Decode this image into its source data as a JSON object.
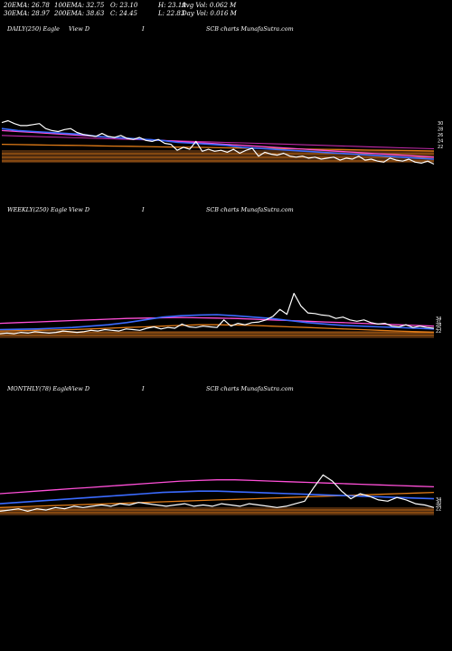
{
  "stats": {
    "row1": [
      "20EMA: 26.78",
      "100EMA: 32.75",
      "O: 23.10",
      "H: 23.19",
      "Avg Vol: 0.062  M"
    ],
    "row2": [
      "30EMA: 28.97",
      "200EMA: 38.63",
      "C: 24.45",
      "L: 22.83",
      "Day Vol: 0.016  M"
    ]
  },
  "panels": [
    {
      "title_a": "DAILY(250) Eagle",
      "title_b": "View  D",
      "title_c": "I",
      "title_d": "SCB charts MunafaSutra.com"
    },
    {
      "title_a": "WEEKLY(250) Eagle",
      "title_b": "View  D",
      "title_c": "I",
      "title_d": "SCB charts MunafaSutra.com"
    },
    {
      "title_a": "MONTHLY(78) Eagle",
      "title_b": "View  D",
      "title_c": "I",
      "title_d": "SCB charts MunafaSutra.com"
    }
  ],
  "colors": {
    "price": "#ffffff",
    "ema_blue": "#3b6bff",
    "ema_pink": "#ff4fd8",
    "ema_magenta": "#c02aa8",
    "ema_orange": "#e07b17",
    "band_brown": "#8a4c1a"
  },
  "chart_data": [
    {
      "type": "line",
      "title": "DAILY(250) Eagle",
      "series": [
        {
          "role": "price",
          "values": [
            58,
            60,
            57,
            55,
            55,
            56,
            57,
            52,
            50,
            49,
            51,
            52,
            48,
            46,
            45,
            44,
            47,
            44,
            43,
            45,
            42,
            41,
            43,
            40,
            39,
            41,
            37,
            36,
            30,
            33,
            31,
            39,
            29,
            31,
            29,
            30,
            28,
            31,
            27,
            30,
            32,
            24,
            28,
            26,
            25,
            27,
            24,
            23,
            24,
            22,
            23,
            21,
            22,
            23,
            20,
            22,
            21,
            24,
            20,
            21,
            19,
            18,
            22,
            20,
            19,
            21,
            18,
            17,
            19,
            16
          ]
        },
        {
          "role": "ema-blue",
          "values": [
            52,
            50,
            49,
            48,
            47,
            46,
            44,
            43,
            42,
            41,
            40,
            38,
            37,
            36,
            35,
            33,
            32,
            31,
            30,
            29,
            28,
            27,
            26,
            25,
            24,
            23,
            22,
            21
          ]
        },
        {
          "role": "ema-pink",
          "values": [
            50,
            49,
            48,
            47,
            46,
            45,
            44,
            43,
            42,
            41,
            40,
            39,
            38,
            37,
            36,
            35,
            34,
            33,
            32,
            31,
            30,
            29,
            28,
            27,
            26,
            25,
            24,
            23
          ]
        },
        {
          "role": "ema-magenta",
          "values": [
            45,
            44.5,
            44,
            43.5,
            43,
            42.5,
            42,
            41.5,
            41,
            40.5,
            40,
            39.5,
            39,
            38.5,
            38,
            37.5,
            37,
            36.5,
            36,
            35.5,
            35,
            34.5,
            34,
            33.5,
            33,
            32.5,
            32,
            31.5
          ]
        },
        {
          "role": "ema-orange",
          "values": [
            36,
            35.8,
            35.5,
            35.2,
            35,
            34.8,
            34.5,
            34.2,
            34,
            33.7,
            33.4,
            33.2,
            33,
            32.8,
            32.5,
            32.2,
            32,
            31.8,
            31.5,
            31.2,
            31,
            30.8,
            30.5,
            30.2,
            30,
            29.8,
            29.5,
            29.2
          ]
        }
      ],
      "price_labels": [
        "30",
        "28",
        "26",
        "24",
        "22"
      ]
    },
    {
      "type": "line",
      "title": "WEEKLY(250) Eagle",
      "series": [
        {
          "role": "price",
          "values": [
            20,
            21,
            20,
            22,
            21,
            23,
            22,
            21,
            22,
            24,
            23,
            22,
            23,
            25,
            24,
            26,
            25,
            24,
            27,
            26,
            25,
            28,
            30,
            27,
            29,
            28,
            34,
            30,
            29,
            31,
            30,
            29,
            40,
            31,
            35,
            33,
            36,
            37,
            40,
            45,
            55,
            48,
            78,
            60,
            50,
            49,
            47,
            46,
            42,
            44,
            40,
            38,
            40,
            36,
            34,
            35,
            31,
            30,
            33,
            29,
            31,
            29,
            28
          ]
        },
        {
          "role": "ema-blue",
          "values": [
            26,
            26.5,
            27,
            28,
            29,
            31,
            33,
            36,
            40,
            44,
            46,
            47,
            47.5,
            46,
            44,
            42,
            39,
            36,
            34,
            32,
            31,
            30,
            29,
            28,
            27
          ]
        },
        {
          "role": "ema-pink",
          "values": [
            35,
            36,
            37,
            38,
            39,
            40,
            41,
            42,
            42.5,
            43,
            43.5,
            43,
            42.5,
            42,
            41,
            40,
            39,
            38,
            37,
            36,
            35,
            34,
            33,
            32,
            31
          ]
        },
        {
          "role": "ema-orange",
          "values": [
            24,
            24.5,
            25,
            25.5,
            26,
            27,
            28,
            29,
            30,
            31,
            32,
            33,
            33,
            32.5,
            32,
            31,
            30,
            29,
            28,
            27,
            26,
            25,
            24,
            23,
            22
          ]
        }
      ],
      "price_labels": [
        "34",
        "31",
        "28",
        "25",
        "22"
      ]
    },
    {
      "type": "line",
      "title": "MONTHLY(78) Eagle",
      "series": [
        {
          "role": "price",
          "values": [
            16,
            17,
            18,
            16,
            18,
            17,
            19,
            18,
            20,
            19,
            20,
            21,
            20,
            22,
            21,
            23,
            22,
            21,
            20,
            21,
            22,
            20,
            21,
            20,
            22,
            21,
            20,
            22,
            21,
            20,
            19,
            20,
            22,
            24,
            35,
            45,
            40,
            32,
            26,
            30,
            28,
            25,
            24,
            27,
            25,
            22,
            21,
            19
          ]
        },
        {
          "role": "ema-blue",
          "values": [
            22,
            23,
            24,
            25,
            26,
            27,
            28,
            29,
            30,
            31,
            31.5,
            32,
            32,
            31.5,
            31,
            30.5,
            30,
            29.5,
            29,
            28.5,
            28,
            27.5,
            27,
            26.5,
            26
          ]
        },
        {
          "role": "ema-pink",
          "values": [
            30,
            31,
            32,
            33,
            34,
            35,
            36,
            37,
            38,
            39,
            40,
            40.5,
            41,
            41,
            40.5,
            40,
            39.5,
            39,
            38.5,
            38,
            37.5,
            37,
            36.5,
            36,
            35.5
          ]
        },
        {
          "role": "ema-orange",
          "values": [
            19,
            19.5,
            20,
            20.5,
            21,
            21.5,
            22,
            22.5,
            23,
            23.5,
            24,
            24.5,
            25,
            25.5,
            26,
            26.5,
            27,
            27.5,
            28,
            28.5,
            29,
            29.5,
            30,
            30.5,
            31
          ]
        }
      ],
      "price_labels": [
        "34",
        "30",
        "26",
        "22"
      ]
    }
  ]
}
